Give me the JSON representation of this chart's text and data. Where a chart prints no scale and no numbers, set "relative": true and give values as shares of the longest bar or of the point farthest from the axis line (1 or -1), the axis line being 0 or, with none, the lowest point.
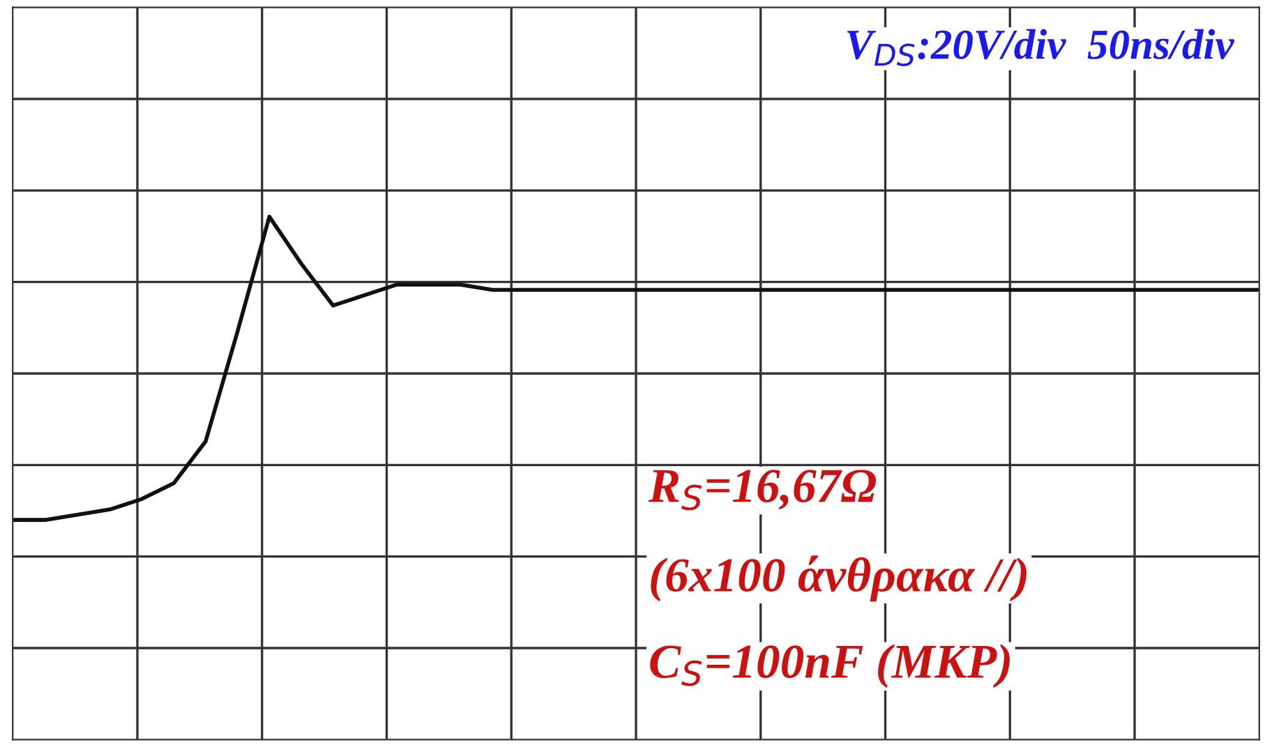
{
  "chart_data": {
    "type": "line",
    "relative": true,
    "grid": true,
    "categories": [
      null,
      null,
      null,
      null,
      null,
      null,
      null,
      null,
      null,
      null,
      null,
      null,
      null,
      null,
      null,
      null,
      null,
      null,
      null,
      null,
      null,
      null,
      null,
      null,
      null,
      null,
      null,
      null,
      null,
      null,
      null,
      null,
      null,
      null,
      null,
      null,
      null,
      null,
      null,
      null
    ],
    "series": [
      {
        "color": "#111111",
        "values": [
          0.42,
          0.42,
          0.43,
          0.44,
          0.46,
          0.49,
          0.57,
          0.78,
          1.0,
          0.91,
          0.83,
          0.85,
          0.87,
          0.87,
          0.87,
          0.86,
          0.86,
          0.86,
          0.86,
          0.86,
          0.86,
          0.86,
          0.86,
          0.86,
          0.86,
          0.86,
          0.86,
          0.86,
          0.86,
          0.86,
          0.86,
          0.86,
          0.86,
          0.86,
          0.86,
          0.86,
          0.86,
          0.86,
          0.86,
          0.86
        ]
      }
    ],
    "annotations": [
      "V$_{DS}$:20V/div  50ns/div",
      "R$_{S}$=16,67Ω",
      "(6x100 άνθρακα //)",
      "C$_{S}$=100nF (MKP)"
    ]
  }
}
